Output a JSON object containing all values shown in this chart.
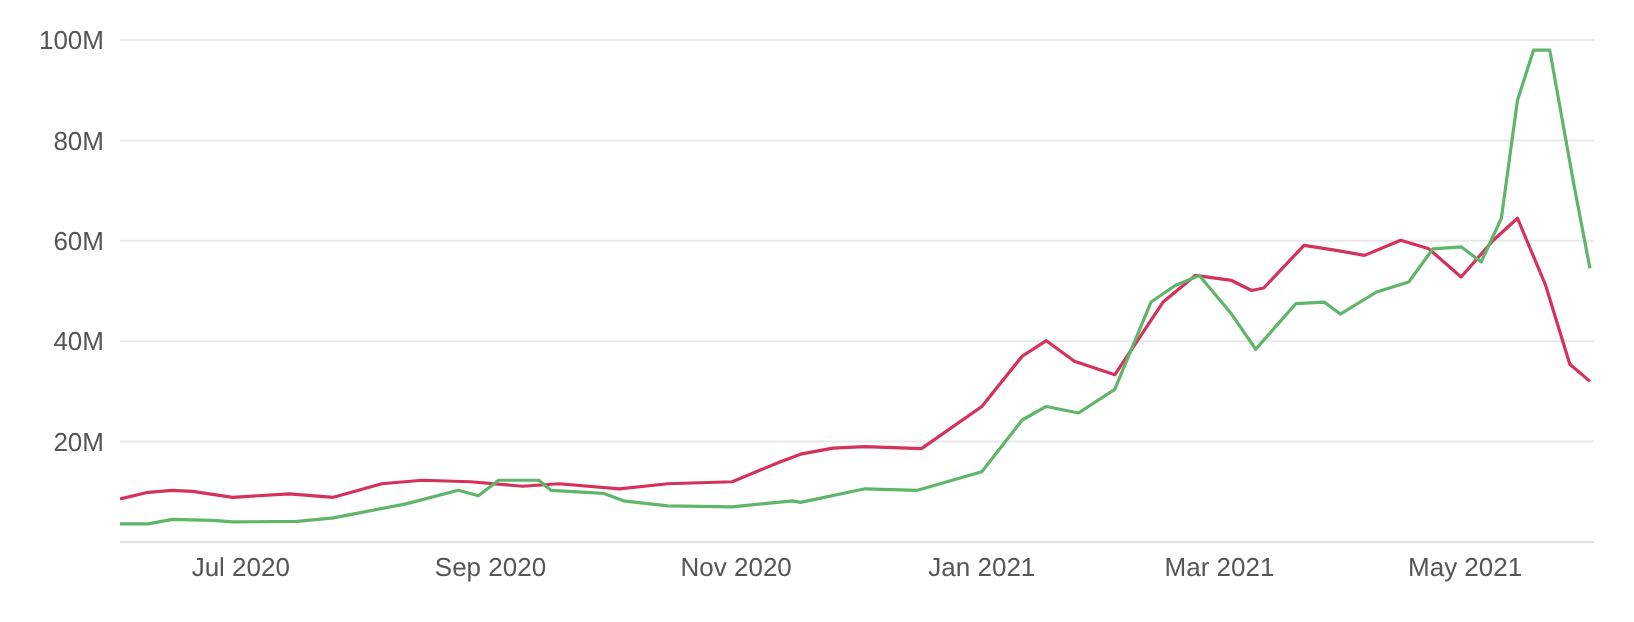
{
  "chart_data": {
    "type": "line",
    "xlim": [
      "2020-06-01",
      "2021-06-02"
    ],
    "xticks": [
      {
        "value": "2020-07-01",
        "label": "Jul 2020"
      },
      {
        "value": "2020-09-01",
        "label": "Sep 2020"
      },
      {
        "value": "2020-11-01",
        "label": "Nov 2020"
      },
      {
        "value": "2021-01-01",
        "label": "Jan 2021"
      },
      {
        "value": "2021-03-01",
        "label": "Mar 2021"
      },
      {
        "value": "2021-05-01",
        "label": "May 2021"
      }
    ],
    "ylim": [
      0,
      100
    ],
    "yticks": [
      {
        "value": 20,
        "label": "20M"
      },
      {
        "value": 40,
        "label": "40M"
      },
      {
        "value": 60,
        "label": "60M"
      },
      {
        "value": 80,
        "label": "80M"
      },
      {
        "value": 100,
        "label": "100M"
      }
    ],
    "grid": "y",
    "marker": "none",
    "line_style": "solid",
    "series": [
      {
        "color": "#d6315a",
        "x": [
          "2020-06-01",
          "2020-06-08",
          "2020-06-14",
          "2020-06-19",
          "2020-06-29",
          "2020-07-13",
          "2020-07-24",
          "2020-08-05",
          "2020-08-15",
          "2020-08-27",
          "2020-09-09",
          "2020-09-18",
          "2020-10-03",
          "2020-10-15",
          "2020-10-31",
          "2020-11-12",
          "2020-11-17",
          "2020-11-25",
          "2020-12-03",
          "2020-12-17",
          "2021-01-01",
          "2021-01-11",
          "2021-01-17",
          "2021-01-24",
          "2021-02-03",
          "2021-02-15",
          "2021-02-23",
          "2021-03-04",
          "2021-03-09",
          "2021-03-12",
          "2021-03-22",
          "2021-03-30",
          "2021-04-06",
          "2021-04-15",
          "2021-04-22",
          "2021-04-30",
          "2021-05-08",
          "2021-05-14",
          "2021-05-21",
          "2021-05-27",
          "2021-06-01"
        ],
        "values": [
          8.6,
          9.9,
          10.3,
          10.1,
          8.9,
          9.6,
          8.9,
          11.6,
          12.3,
          12.0,
          11.1,
          11.6,
          10.6,
          11.6,
          12.0,
          16.0,
          17.5,
          18.7,
          19.0,
          18.6,
          27.0,
          37.0,
          40.1,
          36.0,
          33.3,
          47.8,
          53.1,
          52.1,
          50.1,
          50.6,
          59.1,
          58.1,
          57.1,
          60.1,
          58.4,
          52.8,
          60.1,
          64.5,
          51.1,
          35.4,
          32.0
        ]
      },
      {
        "color": "#5fb56a",
        "x": [
          "2020-06-01",
          "2020-06-08",
          "2020-06-14",
          "2020-06-24",
          "2020-06-29",
          "2020-07-15",
          "2020-07-24",
          "2020-08-11",
          "2020-08-24",
          "2020-08-29",
          "2020-09-03",
          "2020-09-13",
          "2020-09-16",
          "2020-09-29",
          "2020-10-04",
          "2020-10-15",
          "2020-10-31",
          "2020-11-15",
          "2020-11-17",
          "2020-12-03",
          "2020-12-16",
          "2021-01-01",
          "2021-01-11",
          "2021-01-17",
          "2021-01-25",
          "2021-02-03",
          "2021-02-12",
          "2021-02-18",
          "2021-02-24",
          "2021-03-04",
          "2021-03-10",
          "2021-03-20",
          "2021-03-27",
          "2021-03-31",
          "2021-04-09",
          "2021-04-17",
          "2021-04-23",
          "2021-04-30",
          "2021-05-05",
          "2021-05-10",
          "2021-05-14",
          "2021-05-18",
          "2021-05-22",
          "2021-05-28",
          "2021-06-01"
        ],
        "values": [
          3.6,
          3.6,
          4.5,
          4.3,
          4.0,
          4.1,
          4.8,
          7.6,
          10.3,
          9.2,
          12.3,
          12.3,
          10.3,
          9.7,
          8.2,
          7.2,
          7.0,
          8.2,
          7.9,
          10.6,
          10.3,
          14.0,
          24.3,
          27.0,
          25.7,
          30.4,
          47.8,
          51.1,
          53.1,
          45.4,
          38.4,
          47.5,
          47.8,
          45.4,
          49.8,
          51.8,
          58.4,
          58.8,
          55.8,
          64.5,
          88.0,
          98.0,
          98.0,
          71.2,
          54.5
        ]
      }
    ]
  }
}
